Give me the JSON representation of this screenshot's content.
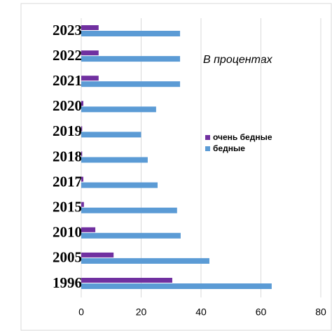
{
  "chart_data": {
    "type": "bar",
    "orientation": "horizontal",
    "annotation": "В процентах",
    "categories": [
      "2023",
      "2022",
      "2021",
      "2020",
      "2019",
      "2018",
      "2017",
      "2015",
      "2010",
      "2005",
      "1996"
    ],
    "series": [
      {
        "name": "очень бедные",
        "color": "#7030a0",
        "values": [
          5.8,
          5.8,
          5.8,
          0.7,
          0.3,
          0.3,
          0.7,
          0.9,
          4.7,
          10.8,
          30.4
        ]
      },
      {
        "name": "бедные",
        "color": "#5b9bd5",
        "values": [
          33,
          33,
          33,
          25,
          20,
          22.2,
          25.5,
          32,
          33.2,
          42.8,
          63.6
        ]
      }
    ],
    "xlim": [
      0,
      80
    ],
    "xticks": [
      0,
      20,
      40,
      60,
      80
    ],
    "grid": true,
    "legend": "right"
  }
}
